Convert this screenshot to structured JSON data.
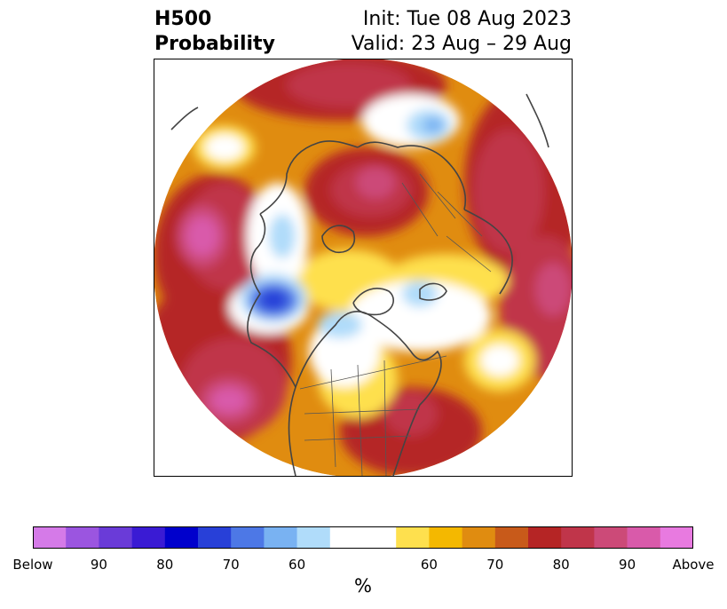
{
  "header": {
    "title_line1": "H500",
    "title_line2": "Probability",
    "init": "Init: Tue 08 Aug 2023",
    "valid": "Valid: 23 Aug – 29 Aug"
  },
  "map": {
    "projection": "north-polar-stereographic",
    "features": [
      "coastlines",
      "country-borders",
      "us-state-borders"
    ]
  },
  "colorbar": {
    "unit": "%",
    "colors": [
      "#d57ae8",
      "#9b55e0",
      "#6a3bd8",
      "#3a1bd4",
      "#0000cc",
      "#2840d8",
      "#4d78e6",
      "#79b2f2",
      "#b0dcfa",
      "#ffffff",
      "#fee04e",
      "#f4b800",
      "#e08c10",
      "#c85a1a",
      "#b52525",
      "#c0354a",
      "#cc4a78",
      "#d95aaa",
      "#e87ae0"
    ],
    "tick_labels": [
      "Below",
      "90",
      "80",
      "70",
      "60",
      "60",
      "70",
      "80",
      "90",
      "Above"
    ]
  }
}
